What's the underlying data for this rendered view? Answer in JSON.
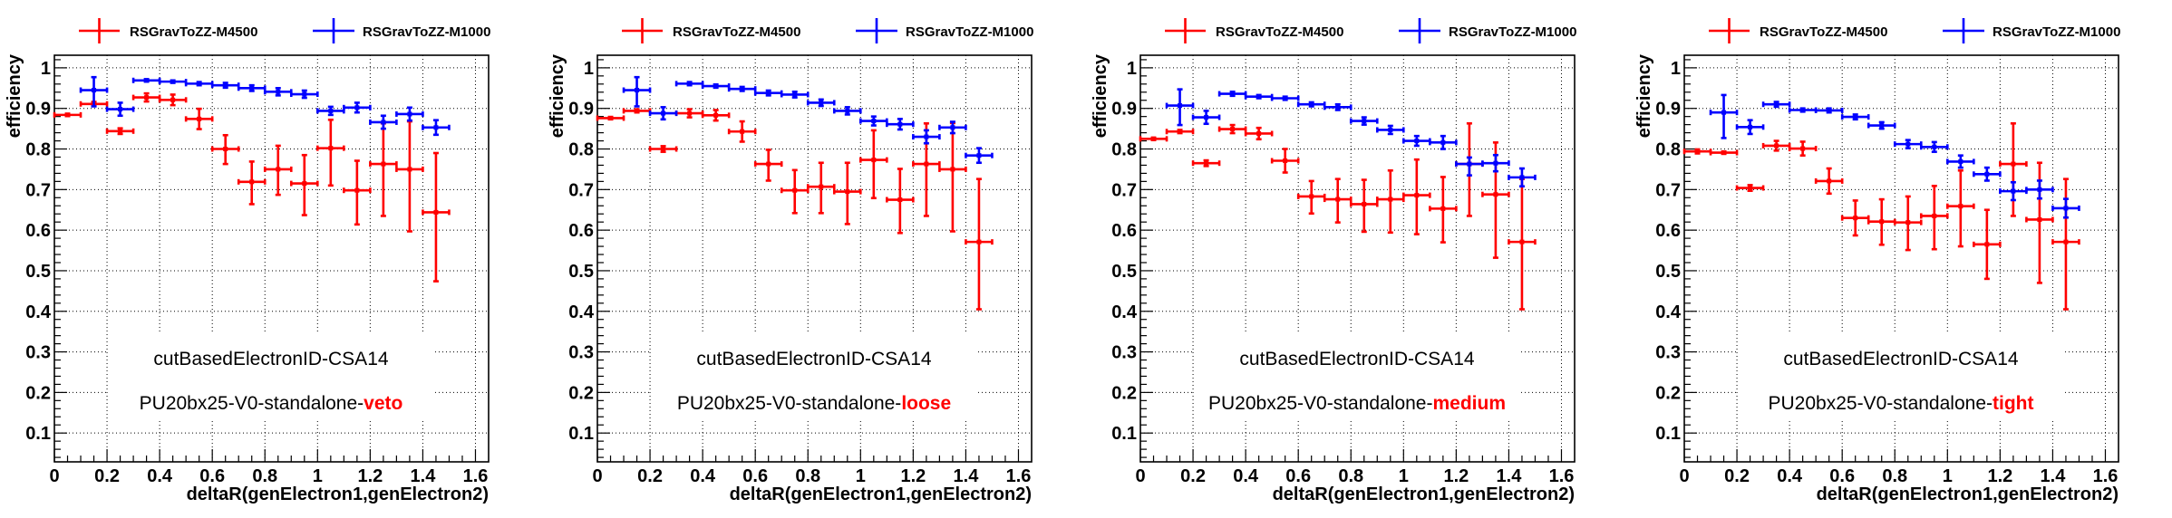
{
  "figure": {
    "colors": {
      "M4500": "#ff0000",
      "M1000": "#0000ff",
      "highlight": "#ff0000"
    }
  },
  "chart_data": [
    {
      "type": "scatter",
      "title": "",
      "xlabel": "deltaR(genElectron1,genElectron2)",
      "ylabel": "efficiency",
      "xlim": [
        0,
        1.65
      ],
      "ylim": [
        0.029,
        1.031
      ],
      "xticks": [
        "0",
        "0.2",
        "0.4",
        "0.6",
        "0.8",
        "1",
        "1.2",
        "1.4",
        "1.6"
      ],
      "yticks": [
        "0.1",
        "0.2",
        "0.3",
        "0.4",
        "0.5",
        "0.6",
        "0.7",
        "0.8",
        "0.9",
        "1"
      ],
      "grid": true,
      "legend": "top",
      "annotation": {
        "line1": "cutBasedElectronID-CSA14",
        "line2_prefix": "PU20bx25-V0-standalone-",
        "line2_highlight": "veto"
      },
      "bin_width": 0.1,
      "series": [
        {
          "name": "RSGravToZZ-M4500",
          "color": "#ff0000",
          "x": [
            0.05,
            0.15,
            0.25,
            0.35,
            0.45,
            0.55,
            0.65,
            0.75,
            0.85,
            0.95,
            1.05,
            1.15,
            1.25,
            1.35,
            1.45
          ],
          "y": [
            0.884,
            0.911,
            0.844,
            0.927,
            0.921,
            0.874,
            0.8,
            0.719,
            0.75,
            0.715,
            0.802,
            0.698,
            0.763,
            0.75,
            0.644
          ],
          "err_up": [
            0.003,
            0.005,
            0.007,
            0.01,
            0.013,
            0.025,
            0.034,
            0.05,
            0.058,
            0.07,
            0.07,
            0.073,
            0.1,
            0.118,
            0.146
          ],
          "err_down": [
            0.003,
            0.005,
            0.007,
            0.01,
            0.013,
            0.025,
            0.037,
            0.055,
            0.063,
            0.078,
            0.092,
            0.084,
            0.128,
            0.153,
            0.17
          ]
        },
        {
          "name": "RSGravToZZ-M1000",
          "color": "#0000ff",
          "x": [
            0.15,
            0.25,
            0.35,
            0.45,
            0.55,
            0.65,
            0.75,
            0.85,
            0.95,
            1.05,
            1.15,
            1.25,
            1.35,
            1.45
          ],
          "y": [
            0.945,
            0.898,
            0.969,
            0.966,
            0.961,
            0.957,
            0.95,
            0.941,
            0.935,
            0.894,
            0.902,
            0.866,
            0.886,
            0.853
          ],
          "err_up": [
            0.032,
            0.016,
            0.003,
            0.003,
            0.004,
            0.006,
            0.007,
            0.009,
            0.009,
            0.01,
            0.012,
            0.016,
            0.016,
            0.018
          ],
          "err_down": [
            0.04,
            0.016,
            0.003,
            0.003,
            0.004,
            0.006,
            0.007,
            0.009,
            0.009,
            0.01,
            0.012,
            0.016,
            0.016,
            0.018
          ]
        }
      ]
    },
    {
      "type": "scatter",
      "title": "",
      "xlabel": "deltaR(genElectron1,genElectron2)",
      "ylabel": "efficiency",
      "xlim": [
        0,
        1.65
      ],
      "ylim": [
        0.029,
        1.031
      ],
      "xticks": [
        "0",
        "0.2",
        "0.4",
        "0.6",
        "0.8",
        "1",
        "1.2",
        "1.4",
        "1.6"
      ],
      "yticks": [
        "0.1",
        "0.2",
        "0.3",
        "0.4",
        "0.5",
        "0.6",
        "0.7",
        "0.8",
        "0.9",
        "1"
      ],
      "grid": true,
      "legend": "top",
      "annotation": {
        "line1": "cutBasedElectronID-CSA14",
        "line2_prefix": "PU20bx25-V0-standalone-",
        "line2_highlight": "loose"
      },
      "bin_width": 0.1,
      "series": [
        {
          "name": "RSGravToZZ-M4500",
          "color": "#ff0000",
          "x": [
            0.05,
            0.15,
            0.25,
            0.35,
            0.45,
            0.55,
            0.65,
            0.75,
            0.85,
            0.95,
            1.05,
            1.15,
            1.25,
            1.35,
            1.45
          ],
          "y": [
            0.876,
            0.894,
            0.8,
            0.888,
            0.883,
            0.843,
            0.763,
            0.698,
            0.707,
            0.695,
            0.773,
            0.675,
            0.763,
            0.75,
            0.571
          ],
          "err_up": [
            0.003,
            0.004,
            0.007,
            0.01,
            0.013,
            0.025,
            0.035,
            0.05,
            0.059,
            0.071,
            0.073,
            0.076,
            0.1,
            0.114,
            0.155
          ],
          "err_down": [
            0.003,
            0.004,
            0.007,
            0.01,
            0.013,
            0.025,
            0.041,
            0.056,
            0.065,
            0.08,
            0.094,
            0.082,
            0.128,
            0.153,
            0.166
          ]
        },
        {
          "name": "RSGravToZZ-M1000",
          "color": "#0000ff",
          "x": [
            0.15,
            0.25,
            0.35,
            0.45,
            0.55,
            0.65,
            0.75,
            0.85,
            0.95,
            1.05,
            1.15,
            1.25,
            1.35,
            1.45
          ],
          "y": [
            0.945,
            0.888,
            0.961,
            0.955,
            0.948,
            0.938,
            0.934,
            0.914,
            0.894,
            0.869,
            0.861,
            0.83,
            0.853,
            0.784
          ],
          "err_up": [
            0.032,
            0.015,
            0.004,
            0.004,
            0.005,
            0.006,
            0.007,
            0.008,
            0.009,
            0.011,
            0.013,
            0.016,
            0.014,
            0.018
          ],
          "err_down": [
            0.04,
            0.015,
            0.004,
            0.004,
            0.005,
            0.006,
            0.007,
            0.008,
            0.009,
            0.011,
            0.013,
            0.016,
            0.014,
            0.018
          ]
        }
      ]
    },
    {
      "type": "scatter",
      "title": "",
      "xlabel": "deltaR(genElectron1,genElectron2)",
      "ylabel": "efficiency",
      "xlim": [
        0,
        1.65
      ],
      "ylim": [
        0.029,
        1.031
      ],
      "xticks": [
        "0",
        "0.2",
        "0.4",
        "0.6",
        "0.8",
        "1",
        "1.2",
        "1.4",
        "1.6"
      ],
      "yticks": [
        "0.1",
        "0.2",
        "0.3",
        "0.4",
        "0.5",
        "0.6",
        "0.7",
        "0.8",
        "0.9",
        "1"
      ],
      "grid": true,
      "legend": "top",
      "annotation": {
        "line1": "cutBasedElectronID-CSA14",
        "line2_prefix": "PU20bx25-V0-standalone-",
        "line2_highlight": "medium"
      },
      "bin_width": 0.1,
      "series": [
        {
          "name": "RSGravToZZ-M4500",
          "color": "#ff0000",
          "x": [
            0.05,
            0.15,
            0.25,
            0.35,
            0.45,
            0.55,
            0.65,
            0.75,
            0.85,
            0.95,
            1.05,
            1.15,
            1.25,
            1.35,
            1.45
          ],
          "y": [
            0.825,
            0.843,
            0.765,
            0.849,
            0.838,
            0.771,
            0.683,
            0.676,
            0.664,
            0.676,
            0.686,
            0.653,
            0.763,
            0.688,
            0.571
          ],
          "err_up": [
            0.003,
            0.004,
            0.007,
            0.01,
            0.014,
            0.029,
            0.038,
            0.05,
            0.06,
            0.071,
            0.088,
            0.078,
            0.1,
            0.128,
            0.155
          ],
          "err_down": [
            0.003,
            0.004,
            0.007,
            0.01,
            0.014,
            0.029,
            0.042,
            0.057,
            0.068,
            0.082,
            0.096,
            0.083,
            0.128,
            0.156,
            0.166
          ]
        },
        {
          "name": "RSGravToZZ-M1000",
          "color": "#0000ff",
          "x": [
            0.15,
            0.25,
            0.35,
            0.45,
            0.55,
            0.65,
            0.75,
            0.85,
            0.95,
            1.05,
            1.15,
            1.25,
            1.35,
            1.45
          ],
          "y": [
            0.907,
            0.878,
            0.936,
            0.929,
            0.925,
            0.91,
            0.903,
            0.869,
            0.847,
            0.82,
            0.816,
            0.763,
            0.765,
            0.73
          ],
          "err_up": [
            0.04,
            0.016,
            0.005,
            0.004,
            0.004,
            0.005,
            0.007,
            0.009,
            0.01,
            0.012,
            0.016,
            0.016,
            0.02,
            0.022
          ],
          "err_down": [
            0.048,
            0.016,
            0.005,
            0.004,
            0.004,
            0.005,
            0.007,
            0.009,
            0.01,
            0.012,
            0.016,
            0.028,
            0.02,
            0.022
          ]
        }
      ]
    },
    {
      "type": "scatter",
      "title": "",
      "xlabel": "deltaR(genElectron1,genElectron2)",
      "ylabel": "efficiency",
      "xlim": [
        0,
        1.65
      ],
      "ylim": [
        0.029,
        1.031
      ],
      "xticks": [
        "0",
        "0.2",
        "0.4",
        "0.6",
        "0.8",
        "1",
        "1.2",
        "1.4",
        "1.6"
      ],
      "yticks": [
        "0.1",
        "0.2",
        "0.3",
        "0.4",
        "0.5",
        "0.6",
        "0.7",
        "0.8",
        "0.9",
        "1"
      ],
      "grid": true,
      "legend": "top",
      "annotation": {
        "line1": "cutBasedElectronID-CSA14",
        "line2_prefix": "PU20bx25-V0-standalone-",
        "line2_highlight": "tight"
      },
      "bin_width": 0.1,
      "series": [
        {
          "name": "RSGravToZZ-M4500",
          "color": "#ff0000",
          "x": [
            0.05,
            0.15,
            0.25,
            0.35,
            0.45,
            0.55,
            0.65,
            0.75,
            0.85,
            0.95,
            1.05,
            1.15,
            1.25,
            1.35,
            1.45
          ],
          "y": [
            0.794,
            0.791,
            0.704,
            0.808,
            0.801,
            0.721,
            0.63,
            0.621,
            0.619,
            0.635,
            0.659,
            0.565,
            0.763,
            0.626,
            0.571
          ],
          "err_up": [
            0.005,
            0.003,
            0.007,
            0.012,
            0.017,
            0.031,
            0.043,
            0.055,
            0.064,
            0.074,
            0.088,
            0.085,
            0.1,
            0.14,
            0.155
          ],
          "err_down": [
            0.005,
            0.003,
            0.007,
            0.012,
            0.017,
            0.031,
            0.043,
            0.057,
            0.068,
            0.082,
            0.099,
            0.085,
            0.128,
            0.156,
            0.166
          ]
        },
        {
          "name": "RSGravToZZ-M1000",
          "color": "#0000ff",
          "x": [
            0.15,
            0.25,
            0.35,
            0.45,
            0.55,
            0.65,
            0.75,
            0.85,
            0.95,
            1.05,
            1.15,
            1.25,
            1.35,
            1.45
          ],
          "y": [
            0.89,
            0.854,
            0.91,
            0.896,
            0.895,
            0.879,
            0.858,
            0.812,
            0.805,
            0.769,
            0.738,
            0.696,
            0.7,
            0.654
          ],
          "err_up": [
            0.043,
            0.017,
            0.006,
            0.004,
            0.005,
            0.006,
            0.008,
            0.01,
            0.012,
            0.015,
            0.016,
            0.022,
            0.022,
            0.023
          ],
          "err_down": [
            0.063,
            0.017,
            0.006,
            0.004,
            0.005,
            0.006,
            0.008,
            0.01,
            0.012,
            0.015,
            0.016,
            0.022,
            0.022,
            0.023
          ]
        }
      ]
    }
  ]
}
